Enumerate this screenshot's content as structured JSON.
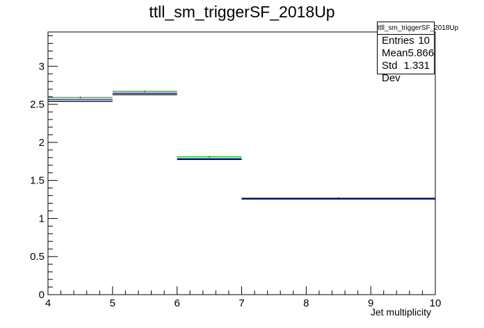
{
  "chart_data": {
    "type": "step",
    "title": "ttll_sm_triggerSF_2018Up",
    "xlabel": "Jet multiplicity",
    "ylabel": "",
    "xlim": [
      4,
      10
    ],
    "ylim": [
      0,
      3.45
    ],
    "x_ticks": [
      "4",
      "5",
      "6",
      "7",
      "8",
      "9",
      "10"
    ],
    "y_ticks": [
      "0",
      "0.5",
      "1",
      "1.5",
      "2",
      "2.5",
      "3"
    ],
    "bins": [
      [
        4,
        5
      ],
      [
        5,
        6
      ],
      [
        6,
        7
      ],
      [
        7,
        10
      ]
    ],
    "series": [
      {
        "color": "#00cc00",
        "values": [
          2.59,
          2.67,
          1.81,
          1.27
        ]
      },
      {
        "color": "#0000cc",
        "values": [
          2.565,
          2.645,
          1.785,
          1.262
        ]
      },
      {
        "color": "#000000",
        "values": [
          2.54,
          2.625,
          1.775,
          1.255
        ]
      }
    ],
    "stats": {
      "header": "ttll_sm_triggerSF_2018Up",
      "rows": [
        {
          "label": "Entries",
          "value": "10"
        },
        {
          "label": "Mean",
          "value": "5.866"
        },
        {
          "label": "Std Dev",
          "value": "1.331"
        }
      ]
    }
  }
}
